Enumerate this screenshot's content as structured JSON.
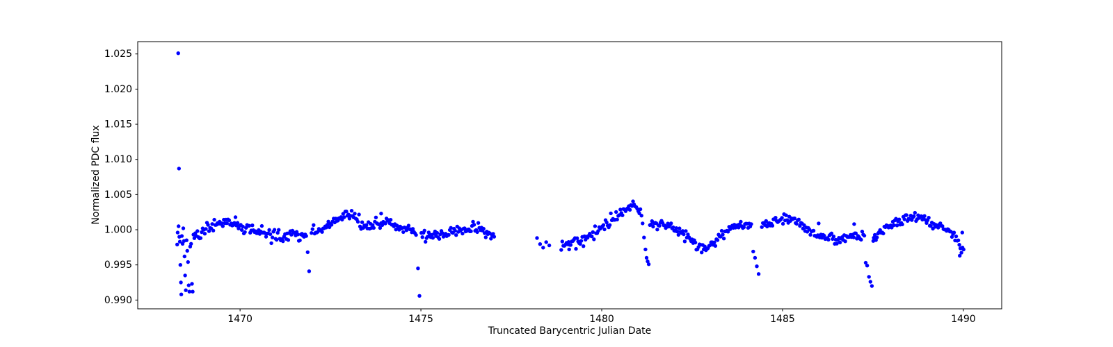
{
  "figure": {
    "background_color": "#ffffff",
    "frame_color": "#000000"
  },
  "chart_data": {
    "type": "scatter",
    "title": "",
    "xlabel": "Truncated Barycentric Julian Date",
    "ylabel": "Normalized PDC flux",
    "xlim": [
      1467.17,
      1491.06
    ],
    "ylim": [
      0.98875,
      1.02675
    ],
    "xticks": [
      1470,
      1475,
      1480,
      1485,
      1490
    ],
    "yticks": [
      0.99,
      0.995,
      1.0,
      1.005,
      1.01,
      1.015,
      1.02,
      1.025
    ],
    "xtick_decimals": 0,
    "ytick_decimals": 3,
    "grid": false,
    "legend": null,
    "marker": {
      "color": "#0000ff",
      "radius_px": 2.7
    },
    "description": "Light curve of normalized PDC flux versus truncated barycentric Julian date: two observing orbits separated by a data gap near 1477.1-1478.2, quasi-periodic stellar variability humps, five transit-like dips near 1471.9, 1474.95, 1481.2, 1484.3 and 1487.4, and high outliers (1.0251, 1.0087) plus a noisy ramp at the start near 1468.3-1468.8",
    "series": {
      "cadence_days": 0.0292,
      "noise_sigma": 0.00038,
      "seed": 20181201,
      "segments": [
        [
          1468.85,
          1477.05,
          0.0292
        ],
        [
          1478.21,
          1478.55,
          0.085
        ],
        [
          1478.88,
          1490.02,
          0.0292
        ]
      ],
      "exclude_windows": [
        [
          1471.83,
          1471.95
        ],
        [
          1474.89,
          1474.99
        ],
        [
          1481.1,
          1481.32
        ],
        [
          1484.16,
          1484.4
        ],
        [
          1487.27,
          1487.52
        ]
      ],
      "trend_keypoints": [
        [
          1468.85,
          0.999
        ],
        [
          1469.05,
          1.0001
        ],
        [
          1469.3,
          1.0009
        ],
        [
          1469.55,
          1.0012
        ],
        [
          1469.85,
          1.0008
        ],
        [
          1470.15,
          1.0004
        ],
        [
          1470.45,
          0.9999
        ],
        [
          1470.75,
          0.9994
        ],
        [
          1471.05,
          0.9989
        ],
        [
          1471.25,
          0.9988
        ],
        [
          1471.45,
          0.9996
        ],
        [
          1471.65,
          0.9991
        ],
        [
          1471.95,
          0.9994
        ],
        [
          1472.25,
          1.0001
        ],
        [
          1472.55,
          1.001
        ],
        [
          1472.85,
          1.0019
        ],
        [
          1473.05,
          1.0023
        ],
        [
          1473.15,
          1.002
        ],
        [
          1473.3,
          1.0008
        ],
        [
          1473.45,
          1.0003
        ],
        [
          1473.65,
          1.0006
        ],
        [
          1473.9,
          1.0011
        ],
        [
          1474.15,
          1.001
        ],
        [
          1474.4,
          1.0004
        ],
        [
          1474.65,
          0.9998
        ],
        [
          1474.9,
          0.9994
        ],
        [
          1475.15,
          0.9991
        ],
        [
          1475.45,
          0.9991
        ],
        [
          1475.75,
          0.9995
        ],
        [
          1476.05,
          1.0
        ],
        [
          1476.35,
          1.0004
        ],
        [
          1476.6,
          1.0
        ],
        [
          1476.85,
          0.9996
        ],
        [
          1477.05,
          0.9993
        ],
        [
          1478.21,
          0.9982
        ],
        [
          1478.55,
          0.9979
        ],
        [
          1478.88,
          0.9981
        ],
        [
          1479.15,
          0.9982
        ],
        [
          1479.4,
          0.9982
        ],
        [
          1479.65,
          0.9989
        ],
        [
          1479.95,
          0.9999
        ],
        [
          1480.25,
          1.0012
        ],
        [
          1480.55,
          1.0024
        ],
        [
          1480.8,
          1.0033
        ],
        [
          1480.92,
          1.0035
        ],
        [
          1481.1,
          1.002
        ],
        [
          1481.35,
          1.001
        ],
        [
          1481.6,
          1.0008
        ],
        [
          1481.9,
          1.0006
        ],
        [
          1482.2,
          0.9997
        ],
        [
          1482.5,
          0.9984
        ],
        [
          1482.75,
          0.9973
        ],
        [
          1482.95,
          0.9976
        ],
        [
          1483.2,
          0.9987
        ],
        [
          1483.45,
          0.9998
        ],
        [
          1483.7,
          1.0004
        ],
        [
          1484.0,
          1.0007
        ],
        [
          1484.45,
          1.0007
        ],
        [
          1484.7,
          1.0012
        ],
        [
          1485.0,
          1.0016
        ],
        [
          1485.25,
          1.0014
        ],
        [
          1485.5,
          1.0008
        ],
        [
          1485.75,
          0.9997
        ],
        [
          1486.0,
          0.999
        ],
        [
          1486.3,
          0.9987
        ],
        [
          1486.6,
          0.9987
        ],
        [
          1486.9,
          0.9988
        ],
        [
          1487.25,
          0.999
        ],
        [
          1487.55,
          0.9992
        ],
        [
          1487.85,
          1.0003
        ],
        [
          1488.15,
          1.0012
        ],
        [
          1488.45,
          1.0017
        ],
        [
          1488.75,
          1.0016
        ],
        [
          1489.05,
          1.0011
        ],
        [
          1489.35,
          1.0005
        ],
        [
          1489.6,
          0.9999
        ],
        [
          1489.78,
          0.9989
        ],
        [
          1489.9,
          0.9979
        ],
        [
          1490.02,
          0.9969
        ]
      ],
      "extra_points": [
        [
          1468.29,
          1.0251
        ],
        [
          1468.31,
          1.0087
        ],
        [
          1468.26,
          0.9979
        ],
        [
          1468.275,
          0.9996
        ],
        [
          1468.3,
          1.0005
        ],
        [
          1468.32,
          0.999
        ],
        [
          1468.335,
          0.9983
        ],
        [
          1468.35,
          0.995
        ],
        [
          1468.365,
          0.9925
        ],
        [
          1468.375,
          0.9908
        ],
        [
          1468.39,
          0.9991
        ],
        [
          1468.41,
          0.998
        ],
        [
          1468.43,
          1.0002
        ],
        [
          1468.45,
          0.9984
        ],
        [
          1468.465,
          0.9962
        ],
        [
          1468.48,
          0.9935
        ],
        [
          1468.5,
          0.9914
        ],
        [
          1468.52,
          0.9985
        ],
        [
          1468.54,
          0.997
        ],
        [
          1468.56,
          0.9954
        ],
        [
          1468.58,
          0.9921
        ],
        [
          1468.6,
          0.9912
        ],
        [
          1468.62,
          0.9976
        ],
        [
          1468.645,
          0.998
        ],
        [
          1468.67,
          0.9923
        ],
        [
          1468.69,
          0.9912
        ],
        [
          1468.71,
          0.9993
        ],
        [
          1468.735,
          0.9988
        ],
        [
          1468.76,
          0.9995
        ],
        [
          1468.79,
          0.9991
        ],
        [
          1468.82,
          0.9998
        ],
        [
          1471.87,
          0.9968
        ],
        [
          1471.91,
          0.9941
        ],
        [
          1474.92,
          0.9945
        ],
        [
          1474.96,
          0.9906
        ],
        [
          1481.13,
          1.0009
        ],
        [
          1481.17,
          0.9989
        ],
        [
          1481.21,
          0.9972
        ],
        [
          1481.24,
          0.996
        ],
        [
          1481.27,
          0.9955
        ],
        [
          1481.3,
          0.9951
        ],
        [
          1484.19,
          0.9969
        ],
        [
          1484.24,
          0.996
        ],
        [
          1484.29,
          0.9948
        ],
        [
          1484.34,
          0.9937
        ],
        [
          1487.3,
          0.9953
        ],
        [
          1487.34,
          0.9949
        ],
        [
          1487.39,
          0.9933
        ],
        [
          1487.43,
          0.9926
        ],
        [
          1487.47,
          0.992
        ],
        [
          1487.51,
          0.9984
        ],
        [
          1473.9,
          1.0023
        ],
        [
          1479.1,
          0.9972
        ],
        [
          1486.0,
          1.0009
        ],
        [
          1486.98,
          1.0008
        ],
        [
          1489.9,
          0.9963
        ],
        [
          1489.97,
          0.9996
        ]
      ]
    }
  }
}
